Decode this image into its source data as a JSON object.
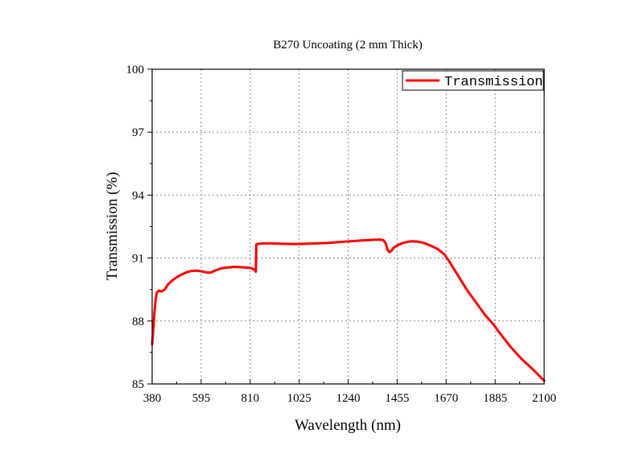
{
  "chart_data": {
    "type": "line",
    "title": "B270 Uncoating (2 mm  Thick)",
    "xlabel": "Wavelength (nm)",
    "ylabel": "Transmission (%)",
    "xlim": [
      380,
      2100
    ],
    "ylim": [
      85,
      100
    ],
    "xticks": [
      380,
      595,
      810,
      1025,
      1240,
      1455,
      1670,
      1885,
      2100
    ],
    "yticks": [
      85,
      88,
      91,
      94,
      97,
      100
    ],
    "grid": true,
    "legend_position": "top-right",
    "series": [
      {
        "name": "Transmission",
        "color": "#ff0000",
        "points": [
          [
            380,
            86.9
          ],
          [
            385,
            87.6
          ],
          [
            390,
            88.4
          ],
          [
            395,
            89.0
          ],
          [
            400,
            89.35
          ],
          [
            410,
            89.45
          ],
          [
            420,
            89.4
          ],
          [
            435,
            89.5
          ],
          [
            450,
            89.75
          ],
          [
            470,
            89.95
          ],
          [
            490,
            90.1
          ],
          [
            510,
            90.22
          ],
          [
            530,
            90.32
          ],
          [
            550,
            90.38
          ],
          [
            570,
            90.4
          ],
          [
            590,
            90.38
          ],
          [
            610,
            90.34
          ],
          [
            625,
            90.3
          ],
          [
            640,
            90.32
          ],
          [
            660,
            90.42
          ],
          [
            680,
            90.5
          ],
          [
            700,
            90.54
          ],
          [
            720,
            90.56
          ],
          [
            740,
            90.58
          ],
          [
            760,
            90.57
          ],
          [
            780,
            90.56
          ],
          [
            800,
            90.54
          ],
          [
            815,
            90.52
          ],
          [
            828,
            90.45
          ],
          [
            835,
            90.35
          ],
          [
            837,
            91.65
          ],
          [
            845,
            91.68
          ],
          [
            870,
            91.7
          ],
          [
            900,
            91.7
          ],
          [
            950,
            91.68
          ],
          [
            1000,
            91.67
          ],
          [
            1050,
            91.68
          ],
          [
            1100,
            91.7
          ],
          [
            1150,
            91.72
          ],
          [
            1200,
            91.76
          ],
          [
            1250,
            91.8
          ],
          [
            1300,
            91.84
          ],
          [
            1350,
            91.87
          ],
          [
            1380,
            91.88
          ],
          [
            1395,
            91.85
          ],
          [
            1405,
            91.7
          ],
          [
            1412,
            91.4
          ],
          [
            1420,
            91.28
          ],
          [
            1430,
            91.35
          ],
          [
            1440,
            91.5
          ],
          [
            1460,
            91.63
          ],
          [
            1480,
            91.72
          ],
          [
            1500,
            91.77
          ],
          [
            1520,
            91.8
          ],
          [
            1540,
            91.79
          ],
          [
            1570,
            91.73
          ],
          [
            1600,
            91.6
          ],
          [
            1630,
            91.45
          ],
          [
            1660,
            91.2
          ],
          [
            1680,
            90.9
          ],
          [
            1720,
            90.2
          ],
          [
            1760,
            89.5
          ],
          [
            1800,
            88.9
          ],
          [
            1840,
            88.3
          ],
          [
            1880,
            87.8
          ],
          [
            1900,
            87.5
          ],
          [
            1950,
            86.8
          ],
          [
            2000,
            86.2
          ],
          [
            2050,
            85.7
          ],
          [
            2100,
            85.15
          ]
        ]
      }
    ]
  }
}
